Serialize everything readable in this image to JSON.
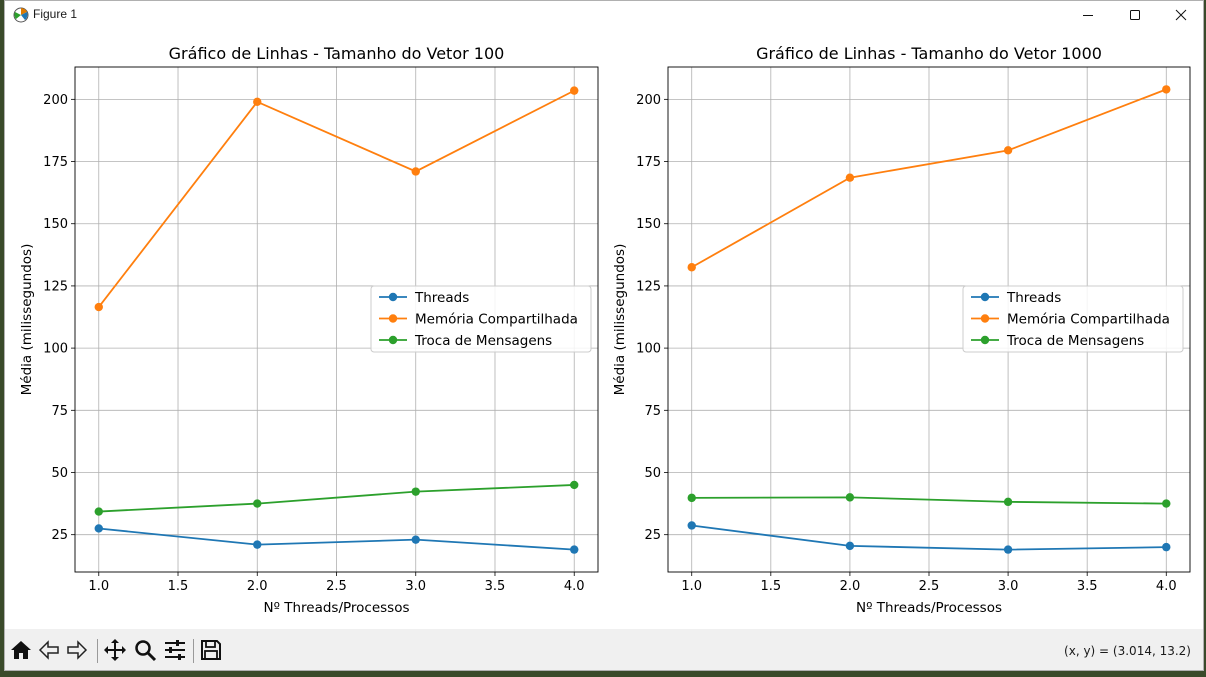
{
  "window": {
    "title": "Figure 1",
    "controls": {
      "minimize_icon": "minimize-icon",
      "maximize_icon": "maximize-icon",
      "close_icon": "close-icon"
    }
  },
  "toolbar": {
    "buttons": [
      "home-icon",
      "back-icon",
      "forward-icon",
      "pan-icon",
      "zoom-icon",
      "configure-subplots-icon",
      "save-icon"
    ],
    "coords": "(x, y) = (3.014, 13.2)"
  },
  "colors": {
    "threads": "#1f77b4",
    "memoria": "#ff7f0e",
    "troca": "#2ca02c",
    "grid": "#b0b0b0"
  },
  "chart_data": [
    {
      "type": "line",
      "title": "Gráfico de Linhas - Tamanho do Vetor 100",
      "xlabel": "Nº Threads/Processos",
      "ylabel": "Média (milissegundos)",
      "x": [
        1.0,
        2.0,
        3.0,
        4.0
      ],
      "xlim": [
        0.85,
        4.15
      ],
      "ylim": [
        10,
        213
      ],
      "xticks": [
        "1.0",
        "1.5",
        "2.0",
        "2.5",
        "3.0",
        "3.5",
        "4.0"
      ],
      "yticks": [
        "25",
        "50",
        "75",
        "100",
        "125",
        "150",
        "175",
        "200"
      ],
      "grid": true,
      "legend_position": "center-right",
      "series": [
        {
          "name": "Threads",
          "values": [
            27.5,
            21,
            23,
            19
          ]
        },
        {
          "name": "Memória Compartilhada",
          "values": [
            116.5,
            199,
            171,
            203.5
          ]
        },
        {
          "name": "Troca de Mensagens",
          "values": [
            34.3,
            37.5,
            42.3,
            45
          ]
        }
      ]
    },
    {
      "type": "line",
      "title": "Gráfico de Linhas - Tamanho do Vetor 1000",
      "xlabel": "Nº Threads/Processos",
      "ylabel": "Média (milissegundos)",
      "x": [
        1.0,
        2.0,
        3.0,
        4.0
      ],
      "xlim": [
        0.85,
        4.15
      ],
      "ylim": [
        10,
        213
      ],
      "xticks": [
        "1.0",
        "1.5",
        "2.0",
        "2.5",
        "3.0",
        "3.5",
        "4.0"
      ],
      "yticks": [
        "25",
        "50",
        "75",
        "100",
        "125",
        "150",
        "175",
        "200"
      ],
      "grid": true,
      "legend_position": "center-right",
      "series": [
        {
          "name": "Threads",
          "values": [
            28.7,
            20.5,
            19,
            20
          ]
        },
        {
          "name": "Memória Compartilhada",
          "values": [
            132.5,
            168.5,
            179.5,
            204
          ]
        },
        {
          "name": "Troca de Mensagens",
          "values": [
            39.8,
            40,
            38.2,
            37.5
          ]
        }
      ]
    }
  ]
}
